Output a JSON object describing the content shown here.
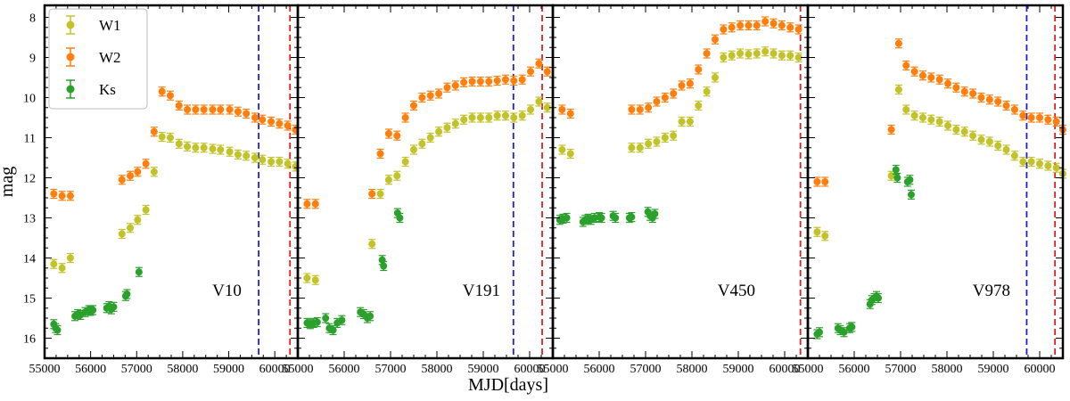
{
  "chart_data": {
    "type": "scatter",
    "xlabel": "MJD[days]",
    "ylabel": "mag",
    "ylim": [
      16.5,
      7.7
    ],
    "y_inverted": true,
    "yticks": [
      8,
      9,
      10,
      11,
      12,
      13,
      14,
      15,
      16
    ],
    "legend": {
      "placement": "top-left",
      "entries": [
        {
          "name": "W1",
          "color": "#c2c22a"
        },
        {
          "name": "W2",
          "color": "#ff7f0e"
        },
        {
          "name": "Ks",
          "color": "#2ca02c"
        }
      ]
    },
    "vline_colors": {
      "blue": "#1f1fd6",
      "red": "#e02020"
    },
    "panels": [
      {
        "label": "V10",
        "xlim": [
          55000,
          60500
        ],
        "xticks": [
          55000,
          56000,
          57000,
          58000,
          59000,
          60000
        ],
        "vlines": {
          "blue": 59650,
          "red": 60330
        },
        "series": [
          {
            "name": "W1",
            "x": [
              55200,
              55380,
              55560,
              56680,
              56860,
              57020,
              57200,
              57380,
              57550,
              57730,
              57920,
              58100,
              58280,
              58460,
              58650,
              58820,
              59020,
              59200,
              59380,
              59570,
              59730,
              59920,
              60100,
              60280,
              60450
            ],
            "y": [
              14.15,
              14.25,
              14.0,
              13.4,
              13.25,
              13.05,
              12.8,
              11.85,
              10.98,
              11.0,
              11.15,
              11.22,
              11.25,
              11.25,
              11.28,
              11.3,
              11.35,
              11.42,
              11.45,
              11.5,
              11.55,
              11.6,
              11.6,
              11.65,
              11.72
            ]
          },
          {
            "name": "W2",
            "x": [
              55200,
              55380,
              55560,
              56680,
              56860,
              57020,
              57200,
              57380,
              57550,
              57730,
              57920,
              58100,
              58280,
              58460,
              58650,
              58820,
              59020,
              59200,
              59380,
              59570,
              59730,
              59920,
              60100,
              60280,
              60450
            ],
            "y": [
              12.4,
              12.45,
              12.45,
              12.05,
              11.95,
              11.85,
              11.65,
              10.85,
              9.85,
              9.95,
              10.2,
              10.3,
              10.3,
              10.3,
              10.3,
              10.3,
              10.3,
              10.35,
              10.4,
              10.5,
              10.55,
              10.6,
              10.65,
              10.7,
              10.8
            ]
          },
          {
            "name": "Ks",
            "x": [
              55200,
              55240,
              55280,
              55660,
              55720,
              55780,
              55880,
              55960,
              56000,
              56050,
              56350,
              56400,
              56450,
              56500,
              56760,
              56790,
              57050
            ],
            "y": [
              15.65,
              15.75,
              15.8,
              15.45,
              15.4,
              15.42,
              15.35,
              15.3,
              15.32,
              15.3,
              15.25,
              15.2,
              15.28,
              15.22,
              14.95,
              14.9,
              14.35
            ]
          }
        ]
      },
      {
        "label": "V191",
        "xlim": [
          55000,
          60500
        ],
        "xticks": [
          55000,
          56000,
          57000,
          58000,
          59000,
          60000
        ],
        "vlines": {
          "blue": 59650,
          "red": 60270
        },
        "series": [
          {
            "name": "W1",
            "x": [
              55200,
              55380,
              56600,
              56780,
              56960,
              57140,
              57320,
              57500,
              57680,
              57860,
              58040,
              58220,
              58400,
              58580,
              58760,
              58940,
              59120,
              59300,
              59480,
              59660,
              59840,
              60020,
              60200,
              60380
            ],
            "y": [
              14.5,
              14.55,
              13.65,
              12.4,
              12.05,
              11.95,
              11.6,
              11.3,
              11.15,
              11.0,
              10.85,
              10.75,
              10.65,
              10.55,
              10.5,
              10.5,
              10.5,
              10.45,
              10.45,
              10.5,
              10.45,
              10.3,
              10.1,
              10.25
            ]
          },
          {
            "name": "W2",
            "x": [
              55200,
              55380,
              56600,
              56780,
              56960,
              57140,
              57320,
              57500,
              57680,
              57860,
              58040,
              58220,
              58400,
              58580,
              58760,
              58940,
              59120,
              59300,
              59480,
              59660,
              59840,
              60020,
              60200,
              60380
            ],
            "y": [
              12.65,
              12.65,
              12.4,
              11.4,
              10.9,
              10.95,
              10.5,
              10.2,
              10.0,
              9.95,
              9.9,
              9.75,
              9.7,
              9.62,
              9.6,
              9.6,
              9.6,
              9.58,
              9.55,
              9.58,
              9.55,
              9.35,
              9.15,
              9.35
            ]
          },
          {
            "name": "Ks",
            "x": [
              55200,
              55270,
              55340,
              55420,
              55600,
              55680,
              55760,
              55850,
              55950,
              56350,
              56420,
              56500,
              56560,
              56820,
              56850,
              57150,
              57200
            ],
            "y": [
              15.62,
              15.65,
              15.62,
              15.6,
              15.5,
              15.75,
              15.8,
              15.62,
              15.55,
              15.35,
              15.4,
              15.5,
              15.45,
              14.05,
              14.2,
              12.88,
              13.0
            ]
          }
        ]
      },
      {
        "label": "V450",
        "xlim": [
          55000,
          60500
        ],
        "xticks": [
          55000,
          56000,
          57000,
          58000,
          59000,
          60000
        ],
        "vlines": {
          "red": 60340
        },
        "series": [
          {
            "name": "W1",
            "x": [
              55200,
              55380,
              56700,
              56880,
              57060,
              57240,
              57420,
              57600,
              57780,
              57960,
              58140,
              58320,
              58500,
              58680,
              58860,
              59040,
              59220,
              59400,
              59580,
              59760,
              59940,
              60120,
              60300
            ],
            "y": [
              11.3,
              11.4,
              11.25,
              11.25,
              11.15,
              11.1,
              11.0,
              10.95,
              10.6,
              10.6,
              10.2,
              9.85,
              9.5,
              9.0,
              8.95,
              8.9,
              8.92,
              8.9,
              8.85,
              8.9,
              8.95,
              8.95,
              9.0
            ]
          },
          {
            "name": "W2",
            "x": [
              55200,
              55380,
              56700,
              56880,
              57060,
              57240,
              57420,
              57600,
              57780,
              57960,
              58140,
              58320,
              58500,
              58680,
              58860,
              59040,
              59220,
              59400,
              59580,
              59760,
              59940,
              60120,
              60300
            ],
            "y": [
              10.3,
              10.4,
              10.3,
              10.3,
              10.25,
              10.1,
              10.0,
              9.9,
              9.7,
              9.65,
              9.3,
              8.9,
              8.55,
              8.3,
              8.25,
              8.2,
              8.2,
              8.2,
              8.1,
              8.15,
              8.2,
              8.25,
              8.3
            ]
          },
          {
            "name": "Ks",
            "x": [
              55150,
              55220,
              55300,
              55650,
              55700,
              55760,
              55820,
              55900,
              56000,
              56050,
              56300,
              56350,
              56650,
              56700,
              57050,
              57100,
              57150,
              57200
            ],
            "y": [
              13.05,
              13.02,
              13.0,
              13.1,
              13.05,
              13.02,
              13.05,
              13.0,
              12.98,
              13.0,
              12.95,
              13.0,
              13.0,
              12.98,
              12.85,
              12.95,
              13.0,
              12.9
            ]
          }
        ]
      },
      {
        "label": "V978",
        "xlim": [
          55000,
          60500
        ],
        "xticks": [
          55000,
          56000,
          57000,
          58000,
          59000,
          60000
        ],
        "vlines": {
          "blue": 59720,
          "red": 60330
        },
        "series": [
          {
            "name": "W1",
            "x": [
              55200,
              55370,
              56800,
              56960,
              57120,
              57300,
              57480,
              57660,
              57840,
              58020,
              58200,
              58380,
              58560,
              58740,
              58920,
              59100,
              59280,
              59460,
              59640,
              59820,
              60000,
              60180,
              60360,
              60500
            ],
            "y": [
              13.35,
              13.45,
              11.95,
              9.8,
              10.3,
              10.45,
              10.5,
              10.55,
              10.6,
              10.7,
              10.8,
              10.85,
              10.95,
              11.05,
              11.1,
              11.2,
              11.3,
              11.45,
              11.6,
              11.6,
              11.65,
              11.7,
              11.75,
              11.9
            ]
          },
          {
            "name": "W2",
            "x": [
              55200,
              55370,
              56800,
              56960,
              57120,
              57300,
              57480,
              57660,
              57840,
              58020,
              58200,
              58380,
              58560,
              58740,
              58920,
              59100,
              59280,
              59460,
              59640,
              59820,
              60000,
              60180,
              60360,
              60500
            ],
            "y": [
              12.1,
              12.1,
              10.8,
              8.65,
              9.2,
              9.35,
              9.45,
              9.5,
              9.55,
              9.65,
              9.75,
              9.85,
              9.9,
              10.0,
              10.05,
              10.1,
              10.2,
              10.3,
              10.45,
              10.5,
              10.5,
              10.55,
              10.6,
              10.8
            ]
          },
          {
            "name": "Ks",
            "x": [
              55200,
              55250,
              55650,
              55700,
              55780,
              55900,
              55950,
              56340,
              56380,
              56430,
              56480,
              56520,
              56900,
              56930,
              57150,
              57200,
              57230
            ],
            "y": [
              15.9,
              15.85,
              15.75,
              15.8,
              15.85,
              15.75,
              15.72,
              15.15,
              15.05,
              15.0,
              14.95,
              15.0,
              11.8,
              12.0,
              12.1,
              12.05,
              12.42
            ]
          }
        ]
      }
    ]
  }
}
